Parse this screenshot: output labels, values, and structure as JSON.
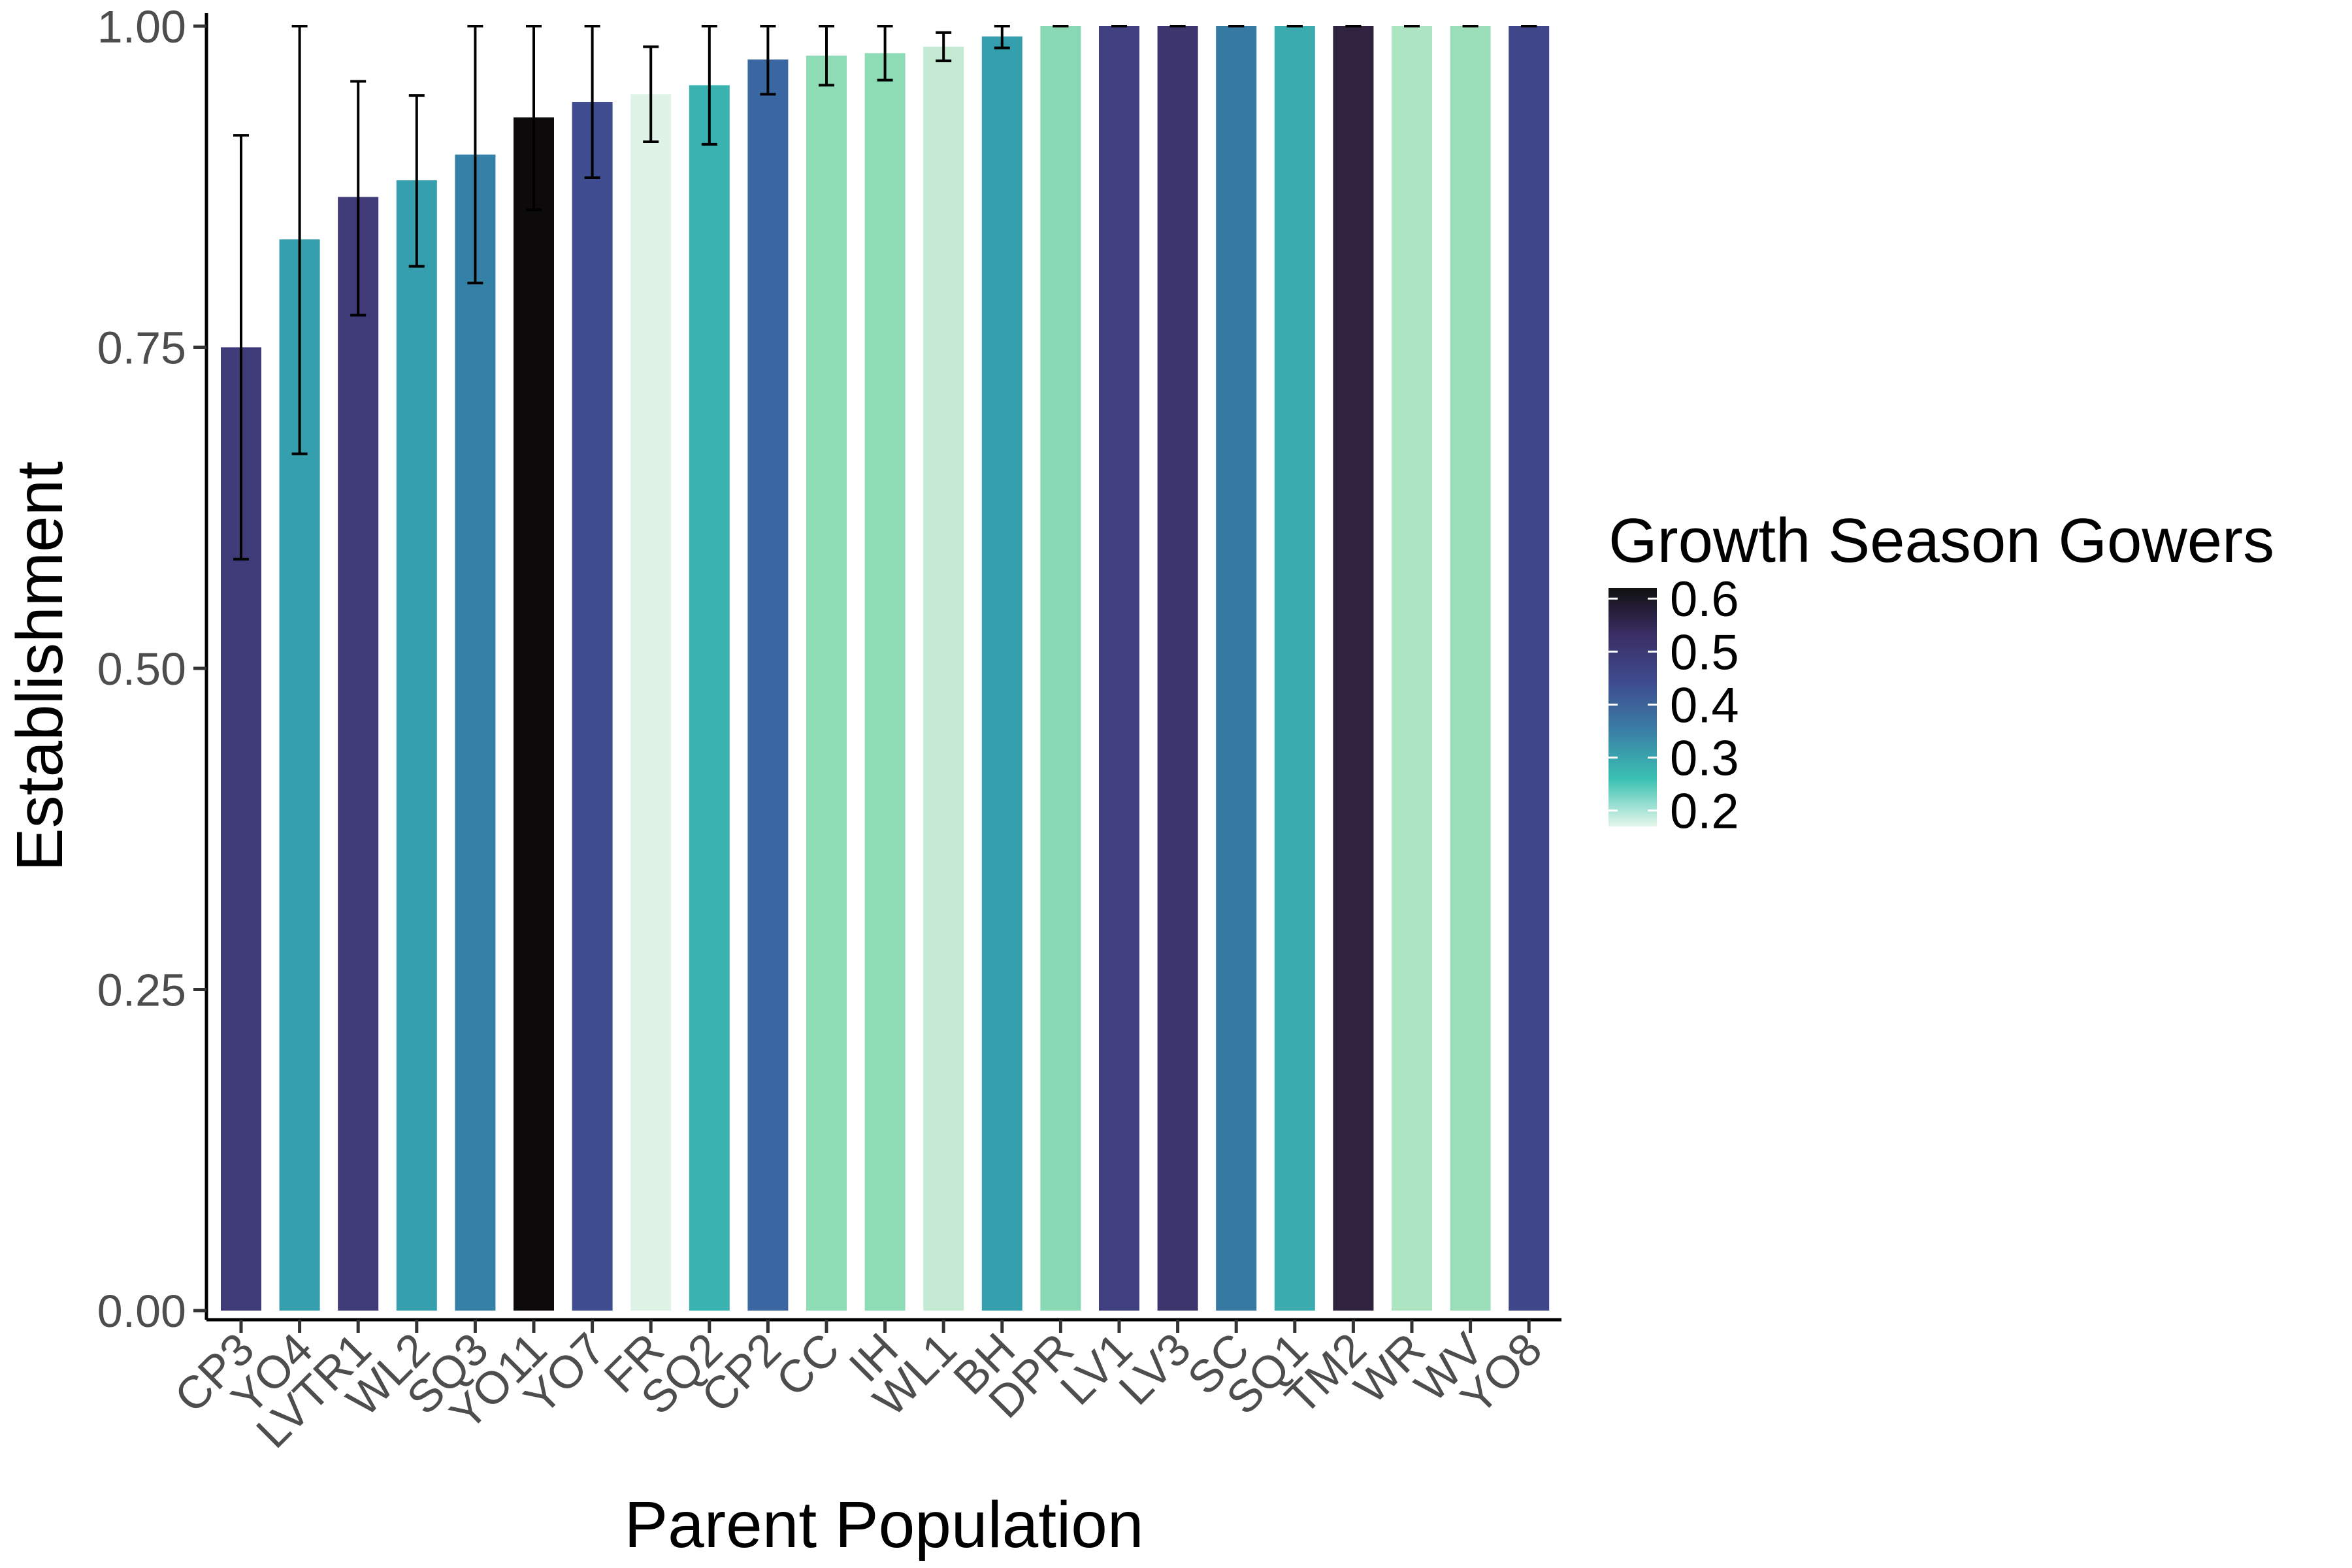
{
  "chart_data": {
    "type": "bar",
    "xlabel": "Parent Population",
    "ylabel": "Establishment",
    "ylim": [
      0,
      1
    ],
    "y_ticks": [
      {
        "value": 0,
        "label": "0.00"
      },
      {
        "value": 0.25,
        "label": "0.25"
      },
      {
        "value": 0.5,
        "label": "0.50"
      },
      {
        "value": 0.75,
        "label": "0.75"
      },
      {
        "value": 1,
        "label": "1.00"
      }
    ],
    "grid": false,
    "legend": {
      "title": "Growth Season Gowers",
      "placement": "right",
      "type": "colorbar",
      "range": [
        0.17,
        0.62
      ],
      "ticks": [
        {
          "value": 0.6,
          "label": "0.6"
        },
        {
          "value": 0.5,
          "label": "0.5"
        },
        {
          "value": 0.4,
          "label": "0.4"
        },
        {
          "value": 0.3,
          "label": "0.3"
        },
        {
          "value": 0.2,
          "label": "0.2"
        }
      ],
      "gradient": [
        "#e4f7ea",
        "#3ac1b2",
        "#3a7fa6",
        "#3e4c8f",
        "#3a2f66",
        "#111011"
      ]
    },
    "bars": [
      {
        "category": "CP3",
        "value": 0.75,
        "err_low": 0.585,
        "err_high": 0.915,
        "gowers": 0.5,
        "color": "#3f3a78"
      },
      {
        "category": "YO4",
        "value": 0.834,
        "err_low": 0.667,
        "err_high": 1.0,
        "gowers": 0.33,
        "color": "#369fae"
      },
      {
        "category": "LVTR1",
        "value": 0.867,
        "err_low": 0.775,
        "err_high": 0.957,
        "gowers": 0.5,
        "color": "#3f3a78"
      },
      {
        "category": "WL2",
        "value": 0.88,
        "err_low": 0.813,
        "err_high": 0.946,
        "gowers": 0.33,
        "color": "#369fae"
      },
      {
        "category": "SQ3",
        "value": 0.9,
        "err_low": 0.8,
        "err_high": 1.0,
        "gowers": 0.38,
        "color": "#3580a6"
      },
      {
        "category": "YO11",
        "value": 0.929,
        "err_low": 0.857,
        "err_high": 1.0,
        "gowers": 0.62,
        "color": "#0d0a0b"
      },
      {
        "category": "YO7",
        "value": 0.941,
        "err_low": 0.882,
        "err_high": 1.0,
        "gowers": 0.45,
        "color": "#3f4c8f"
      },
      {
        "category": "FR",
        "value": 0.947,
        "err_low": 0.91,
        "err_high": 0.984,
        "gowers": 0.17,
        "color": "#dff4e6"
      },
      {
        "category": "SQ2",
        "value": 0.954,
        "err_low": 0.908,
        "err_high": 1.0,
        "gowers": 0.3,
        "color": "#3ab2b0"
      },
      {
        "category": "CP2",
        "value": 0.974,
        "err_low": 0.947,
        "err_high": 1.0,
        "gowers": 0.41,
        "color": "#3a67a1"
      },
      {
        "category": "CC",
        "value": 0.977,
        "err_low": 0.954,
        "err_high": 1.0,
        "gowers": 0.23,
        "color": "#8ddcb6"
      },
      {
        "category": "IH",
        "value": 0.979,
        "err_low": 0.958,
        "err_high": 1.0,
        "gowers": 0.23,
        "color": "#8ddcb6"
      },
      {
        "category": "WL1",
        "value": 0.984,
        "err_low": 0.973,
        "err_high": 0.995,
        "gowers": 0.19,
        "color": "#c5ead3"
      },
      {
        "category": "BH",
        "value": 0.992,
        "err_low": 0.983,
        "err_high": 1.0,
        "gowers": 0.33,
        "color": "#369fae"
      },
      {
        "category": "DPR",
        "value": 1.0,
        "err_low": 1.0,
        "err_high": 1.0,
        "gowers": 0.23,
        "color": "#88d9b3"
      },
      {
        "category": "LV1",
        "value": 1.0,
        "err_low": 1.0,
        "err_high": 1.0,
        "gowers": 0.48,
        "color": "#403f80"
      },
      {
        "category": "LV3",
        "value": 1.0,
        "err_low": 1.0,
        "err_high": 1.0,
        "gowers": 0.52,
        "color": "#3d356e"
      },
      {
        "category": "SC",
        "value": 1.0,
        "err_low": 1.0,
        "err_high": 1.0,
        "gowers": 0.38,
        "color": "#3679a3"
      },
      {
        "category": "SQ1",
        "value": 1.0,
        "err_low": 1.0,
        "err_high": 1.0,
        "gowers": 0.31,
        "color": "#3aacaf"
      },
      {
        "category": "TM2",
        "value": 1.0,
        "err_low": 1.0,
        "err_high": 1.0,
        "gowers": 0.58,
        "color": "#2f2340"
      },
      {
        "category": "WR",
        "value": 1.0,
        "err_low": 1.0,
        "err_high": 1.0,
        "gowers": 0.2,
        "color": "#ade4c2"
      },
      {
        "category": "WV",
        "value": 1.0,
        "err_low": 1.0,
        "err_high": 1.0,
        "gowers": 0.22,
        "color": "#9adfb9"
      },
      {
        "category": "YO8",
        "value": 1.0,
        "err_low": 1.0,
        "err_high": 1.0,
        "gowers": 0.46,
        "color": "#3f4689"
      }
    ]
  }
}
